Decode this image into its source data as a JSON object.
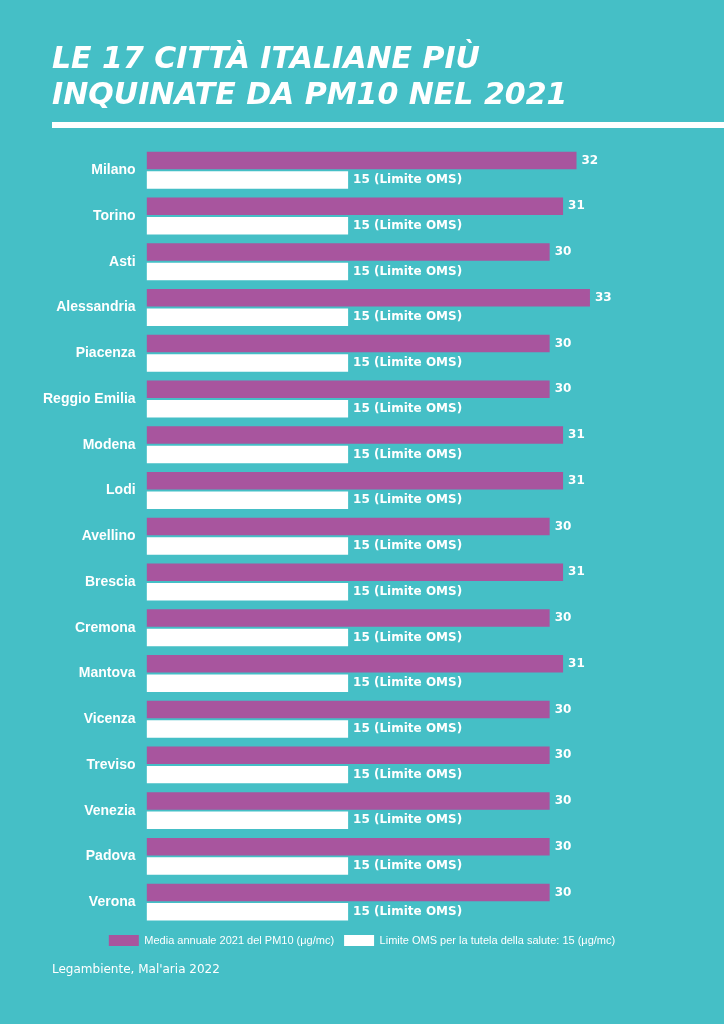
{
  "chart_data": {
    "type": "bar",
    "orientation": "horizontal",
    "title": "LE 17 CITTÀ ITALIANE PIÙ INQUINATE DA PM10 NEL 2021",
    "categories": [
      "Milano",
      "Torino",
      "Asti",
      "Alessandria",
      "Piacenza",
      "Reggio Emilia",
      "Modena",
      "Lodi",
      "Avellino",
      "Brescia",
      "Cremona",
      "Mantova",
      "Vicenza",
      "Treviso",
      "Venezia",
      "Padova",
      "Verona"
    ],
    "series": [
      {
        "name": "Media annuale 2021 del PM10 (μg/mc)",
        "color": "#a8559e",
        "values": [
          32,
          31,
          30,
          33,
          30,
          30,
          31,
          31,
          30,
          31,
          30,
          31,
          30,
          30,
          30,
          30,
          30
        ]
      },
      {
        "name": "Limite OMS per la tutela della salute: 15 (μg/mc)",
        "color": "#ffffff",
        "values": [
          15,
          15,
          15,
          15,
          15,
          15,
          15,
          15,
          15,
          15,
          15,
          15,
          15,
          15,
          15,
          15,
          15
        ],
        "value_labels": [
          "15 (Limite OMS)",
          "15 (Limite OMS)",
          "15 (Limite OMS)",
          "15 (Limite OMS)",
          "15 (Limite OMS)",
          "15 (Limite OMS)",
          "15 (Limite OMS)",
          "15 (Limite OMS)",
          "15 (Limite OMS)",
          "15 (Limite OMS)",
          "15 (Limite OMS)",
          "15 (Limite OMS)",
          "15 (Limite OMS)",
          "15 (Limite OMS)",
          "15 (Limite OMS)",
          "15 (Limite OMS)",
          "15 (Limite OMS)"
        ]
      }
    ],
    "data_labels": true,
    "grid": false,
    "legend": "bottom",
    "tick_labels": "y",
    "annotations": [
      "Legambiente, Mal'aria 2022"
    ]
  }
}
